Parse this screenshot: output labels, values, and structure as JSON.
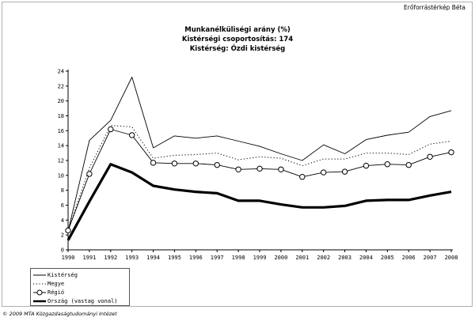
{
  "brand": "Erőforrástérkép Béta",
  "copyright": "© 2009 MTA Közgazdaságtudományi Intézet",
  "chart_data": {
    "type": "line",
    "title": "Munkanélküliségi arány (%)",
    "subtitle_1": "Kistérségi csoportosítás: 174",
    "subtitle_2": "Kistérség: Ózdi kistérség",
    "xlabel": "",
    "ylabel": "",
    "ylim": [
      0,
      24
    ],
    "yticks": [
      0,
      2,
      4,
      6,
      8,
      10,
      12,
      14,
      16,
      18,
      20,
      22,
      24
    ],
    "grid": false,
    "legend_position": "bottom-left",
    "x": [
      "1990",
      "1991",
      "1992",
      "1993",
      "1994",
      "1995",
      "1996",
      "1997",
      "1998",
      "1999",
      "2000",
      "2001",
      "2002",
      "2003",
      "2004",
      "2005",
      "2006",
      "2007",
      "2008"
    ],
    "series": [
      {
        "name": "Kistérség",
        "style": "thin",
        "color": "#000000",
        "values": [
          2.5,
          14.7,
          17.4,
          23.2,
          13.7,
          15.3,
          15.0,
          15.3,
          14.6,
          13.9,
          12.9,
          12.0,
          14.1,
          12.9,
          14.8,
          15.4,
          15.8,
          17.9,
          18.7
        ]
      },
      {
        "name": "Megye",
        "style": "dotted",
        "color": "#000000",
        "values": [
          2.6,
          11.0,
          16.7,
          16.5,
          12.3,
          12.7,
          12.8,
          13.0,
          12.1,
          12.5,
          12.3,
          11.3,
          12.2,
          12.2,
          13.0,
          13.0,
          12.8,
          14.2,
          14.6
        ]
      },
      {
        "name": "Régió",
        "style": "circles",
        "color": "#000000",
        "values": [
          2.6,
          10.2,
          16.2,
          15.4,
          11.7,
          11.6,
          11.6,
          11.4,
          10.8,
          10.9,
          10.8,
          9.8,
          10.4,
          10.5,
          11.3,
          11.5,
          11.4,
          12.5,
          13.1
        ]
      },
      {
        "name": "Ország (vastag vonal)",
        "style": "thick",
        "color": "#000000",
        "values": [
          1.3,
          6.5,
          11.5,
          10.4,
          8.6,
          8.1,
          7.8,
          7.6,
          6.6,
          6.6,
          6.1,
          5.7,
          5.7,
          5.9,
          6.6,
          6.7,
          6.7,
          7.3,
          7.8
        ]
      }
    ]
  }
}
